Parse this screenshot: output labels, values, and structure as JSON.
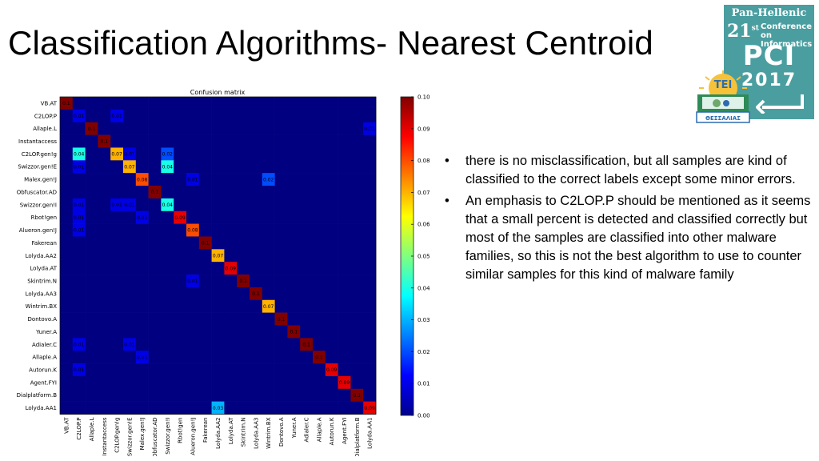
{
  "slide": {
    "title": "Classification Algorithms- Nearest Centroid",
    "bullets": [
      "there is no misclassification, but all samples are kind of classified to the correct labels except some minor errors.",
      "An emphasis to C2LOP.P should be mentioned as it seems that a small percent is detected and classified correctly but most of the samples are classified into other malware families, so this is not the best algorithm to use to counter similar samples for this kind of malware family"
    ]
  },
  "logo": {
    "line1": "Pan-Hellenic",
    "number": "21",
    "number_sup": "st",
    "conference": "Conference",
    "on_informatics": "on Informatics",
    "acronym": "PCI",
    "year": "2017",
    "tei_label": "TEI",
    "tei_sub": "ΘΕΣΣΑΛΙΑΣ",
    "teal": "#4a9ea0"
  },
  "chart_data": {
    "type": "heatmap",
    "title": "Confusion matrix",
    "labels": [
      "VB.AT",
      "C2LOP.P",
      "Allaple.L",
      "Instantaccess",
      "C2LOP.gen!g",
      "Swizzor.gen!E",
      "Malex.gen!J",
      "Obfuscator.AD",
      "Swizzor.gen!I",
      "Rbot!gen",
      "Alueron.gen!J",
      "Fakerean",
      "Lolyda.AA2",
      "Lolyda.AT",
      "Skintrim.N",
      "Lolyda.AA3",
      "Wintrim.BX",
      "Dontovo.A",
      "Yuner.A",
      "Adialer.C",
      "Allaple.A",
      "Autorun.K",
      "Agent.FYI",
      "Dialplatform.B",
      "Lolyda.AA1"
    ],
    "colorbar_ticks": [
      "0.00",
      "0.01",
      "0.02",
      "0.03",
      "0.04",
      "0.05",
      "0.06",
      "0.07",
      "0.08",
      "0.09",
      "0.10"
    ],
    "vmin": 0,
    "vmax": 0.1,
    "cells": [
      [
        0,
        0,
        0.1,
        "0.1"
      ],
      [
        1,
        1,
        0.01,
        "0.01"
      ],
      [
        1,
        4,
        0.01,
        "0.01"
      ],
      [
        2,
        2,
        0.1,
        "0.1"
      ],
      [
        2,
        24,
        0.01,
        "0.01"
      ],
      [
        3,
        3,
        0.1,
        "0.1"
      ],
      [
        4,
        1,
        0.04,
        "0.04"
      ],
      [
        4,
        4,
        0.07,
        "0.07"
      ],
      [
        4,
        5,
        0.01,
        "0.01"
      ],
      [
        4,
        8,
        0.02,
        "0.02"
      ],
      [
        5,
        1,
        0.01,
        "0.01"
      ],
      [
        5,
        5,
        0.07,
        "0.07"
      ],
      [
        5,
        8,
        0.04,
        "0.04"
      ],
      [
        6,
        6,
        0.08,
        "0.08"
      ],
      [
        6,
        10,
        0.01,
        "0.01"
      ],
      [
        6,
        16,
        0.02,
        "0.02"
      ],
      [
        7,
        7,
        0.1,
        "0.1"
      ],
      [
        8,
        1,
        0.01,
        "0.01"
      ],
      [
        8,
        4,
        0.01,
        "0.01"
      ],
      [
        8,
        5,
        0.01,
        "0.01"
      ],
      [
        8,
        8,
        0.04,
        "0.04"
      ],
      [
        9,
        1,
        0.01,
        "0.01"
      ],
      [
        9,
        6,
        0.01,
        "0.01"
      ],
      [
        9,
        9,
        0.09,
        "0.09"
      ],
      [
        10,
        1,
        0.01,
        "0.01"
      ],
      [
        10,
        10,
        0.08,
        "0.08"
      ],
      [
        11,
        11,
        0.1,
        "0.1"
      ],
      [
        12,
        12,
        0.07,
        "0.07"
      ],
      [
        13,
        13,
        0.09,
        "0.09"
      ],
      [
        14,
        10,
        0.01,
        "0.01"
      ],
      [
        14,
        14,
        0.1,
        "0.1"
      ],
      [
        15,
        15,
        0.1,
        "0.1"
      ],
      [
        16,
        16,
        0.07,
        "0.07"
      ],
      [
        17,
        17,
        0.1,
        "0.1"
      ],
      [
        18,
        18,
        0.1,
        "0.1"
      ],
      [
        19,
        1,
        0.01,
        "0.01"
      ],
      [
        19,
        5,
        0.01,
        "0.01"
      ],
      [
        19,
        19,
        0.1,
        "0.1"
      ],
      [
        20,
        6,
        0.01,
        "0.01"
      ],
      [
        20,
        20,
        0.1,
        "0.1"
      ],
      [
        21,
        1,
        0.01,
        "0.01"
      ],
      [
        21,
        21,
        0.09,
        "0.09"
      ],
      [
        22,
        22,
        0.09,
        "0.09"
      ],
      [
        23,
        23,
        0.1,
        "0.1"
      ],
      [
        24,
        12,
        0.03,
        "0.03"
      ],
      [
        24,
        24,
        0.09,
        "0.09"
      ]
    ]
  }
}
